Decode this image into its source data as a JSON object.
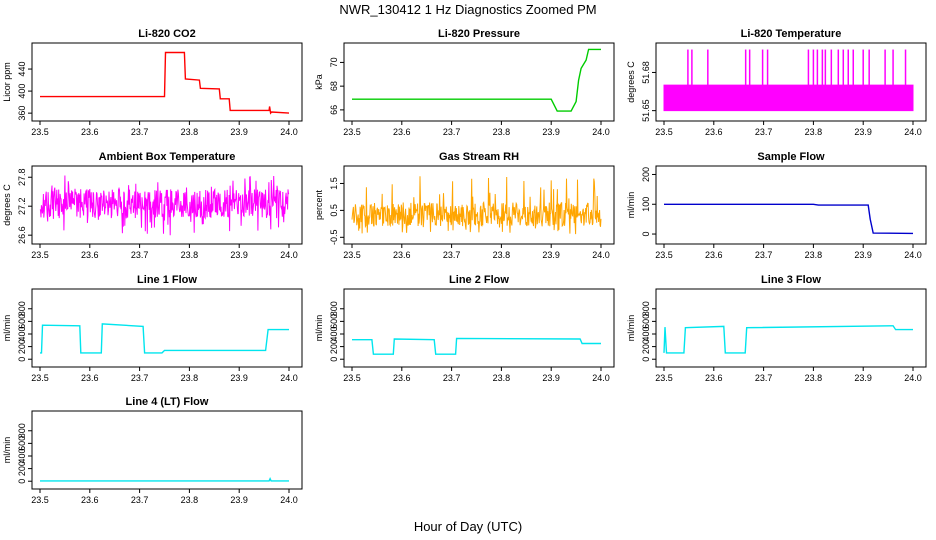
{
  "figure": {
    "title": "NWR_130412  1 Hz Diagnostics Zoomed PM",
    "xlabel": "Hour of Day (UTC)"
  },
  "chart_data": [
    {
      "type": "line",
      "title": "Li-820 CO2",
      "ylabel": "Licor ppm",
      "color": "#ff0000",
      "xlim": [
        23.5,
        24.0
      ],
      "ylim": [
        353,
        480
      ],
      "xticks": [
        "23.5",
        "23.6",
        "23.7",
        "23.8",
        "23.9",
        "24.0"
      ],
      "yticks": [
        360,
        400,
        440
      ],
      "series": [
        {
          "x": [
            23.5,
            23.75,
            23.752,
            23.79,
            23.792,
            23.82,
            23.822,
            23.86,
            23.862,
            23.88,
            23.882,
            23.96,
            23.961,
            23.963,
            23.965,
            24.0
          ],
          "y": [
            390,
            390,
            470,
            470,
            422,
            420,
            405,
            404,
            386,
            386,
            365,
            365,
            372,
            360,
            362,
            360
          ]
        }
      ]
    },
    {
      "type": "line",
      "title": "Li-820 Pressure",
      "ylabel": "kPa",
      "color": "#00cc00",
      "xlim": [
        23.5,
        24.0
      ],
      "ylim": [
        65.4,
        71.3
      ],
      "xticks": [
        "23.5",
        "23.6",
        "23.7",
        "23.8",
        "23.9",
        "24.0"
      ],
      "yticks": [
        66,
        68,
        70
      ],
      "series": [
        {
          "x": [
            23.5,
            23.9,
            23.912,
            23.94,
            23.95,
            23.955,
            23.96,
            23.97,
            23.975,
            24.0
          ],
          "y": [
            66.9,
            66.9,
            65.9,
            65.9,
            66.7,
            68.5,
            69.5,
            70.2,
            71.1,
            71.1
          ]
        }
      ]
    },
    {
      "type": "line",
      "title": "Li-820 Temperature",
      "ylabel": "degrees C",
      "color": "#ff00ff",
      "xlim": [
        23.5,
        24.0
      ],
      "ylim": [
        51.645,
        51.7
      ],
      "xticks": [
        "23.5",
        "23.6",
        "23.7",
        "23.8",
        "23.9",
        "24.0"
      ],
      "yticks": [
        51.65,
        51.68
      ],
      "series": [
        {
          "x": [
            23.5,
            24.0
          ],
          "low": 51.65,
          "high": 51.67,
          "spike": 51.698,
          "spikes_x": [
            23.548,
            23.556,
            23.588,
            23.664,
            23.672,
            23.698,
            23.708,
            23.79,
            23.8,
            23.808,
            23.818,
            23.824,
            23.836,
            23.85,
            23.86,
            23.87,
            23.88,
            23.9,
            23.912,
            23.944,
            23.96,
            23.985
          ]
        }
      ]
    },
    {
      "type": "line",
      "title": "Ambient Box Temperature",
      "ylabel": "degrees C",
      "color": "#ff00ff",
      "xlim": [
        23.5,
        24.0
      ],
      "ylim": [
        26.5,
        27.95
      ],
      "xticks": [
        "23.5",
        "23.6",
        "23.7",
        "23.8",
        "23.9",
        "24.0"
      ],
      "yticks": [
        26.6,
        27.2,
        27.8
      ],
      "series": [
        {
          "x": [
            23.5,
            24.0
          ],
          "mean": 27.25,
          "band": [
            26.95,
            27.55
          ],
          "extremes": [
            26.6,
            27.85
          ]
        }
      ]
    },
    {
      "type": "line",
      "title": "Gas Stream RH",
      "ylabel": "percent",
      "color": "#ffa500",
      "xlim": [
        23.5,
        24.0
      ],
      "ylim": [
        -0.6,
        2.0
      ],
      "xticks": [
        "23.5",
        "23.6",
        "23.7",
        "23.8",
        "23.9",
        "24.0"
      ],
      "yticks": [
        -0.5,
        0.5,
        1.5
      ],
      "series": [
        {
          "x": [
            23.5,
            24.0
          ],
          "mean": 0.35,
          "band": [
            -0.1,
            0.8
          ],
          "extremes": [
            -0.4,
            1.8
          ]
        }
      ]
    },
    {
      "type": "line",
      "title": "Sample Flow",
      "ylabel": "ml/min",
      "color": "#0000cc",
      "xlim": [
        23.5,
        24.0
      ],
      "ylim": [
        -20,
        215
      ],
      "xticks": [
        "23.5",
        "23.6",
        "23.7",
        "23.8",
        "23.9",
        "24.0"
      ],
      "yticks": [
        0,
        100,
        200
      ],
      "series": [
        {
          "x": [
            23.5,
            23.8,
            23.81,
            23.91,
            23.914,
            23.92,
            24.0
          ],
          "y": [
            100,
            100,
            97,
            97,
            50,
            3,
            2
          ]
        }
      ]
    },
    {
      "type": "line",
      "title": "Line 1 Flow",
      "ylabel": "ml/min",
      "color": "#00e5ee",
      "xlim": [
        23.5,
        24.0
      ],
      "ylim": [
        -60,
        1050
      ],
      "xticks": [
        "23.5",
        "23.6",
        "23.7",
        "23.8",
        "23.9",
        "24.0"
      ],
      "yticks": [
        0,
        200,
        400,
        600,
        800
      ],
      "series": [
        {
          "x": [
            23.5,
            23.503,
            23.505,
            23.58,
            23.582,
            23.623,
            23.625,
            23.707,
            23.71,
            23.745,
            23.75,
            23.953,
            23.958,
            24.0
          ],
          "y": [
            100,
            100,
            540,
            530,
            100,
            100,
            560,
            520,
            100,
            100,
            140,
            140,
            470,
            470
          ]
        }
      ]
    },
    {
      "type": "line",
      "title": "Line 2 Flow",
      "ylabel": "ml/min",
      "color": "#00e5ee",
      "xlim": [
        23.5,
        24.0
      ],
      "ylim": [
        -60,
        1050
      ],
      "xticks": [
        "23.5",
        "23.6",
        "23.7",
        "23.8",
        "23.9",
        "24.0"
      ],
      "yticks": [
        0,
        200,
        400,
        600,
        800
      ],
      "series": [
        {
          "x": [
            23.5,
            23.54,
            23.543,
            23.583,
            23.585,
            23.665,
            23.668,
            23.708,
            23.71,
            23.958,
            23.962,
            24.0
          ],
          "y": [
            310,
            310,
            80,
            80,
            320,
            310,
            80,
            80,
            330,
            320,
            250,
            250
          ]
        }
      ]
    },
    {
      "type": "line",
      "title": "Line 3 Flow",
      "ylabel": "ml/min",
      "color": "#00e5ee",
      "xlim": [
        23.5,
        24.0
      ],
      "ylim": [
        -60,
        1050
      ],
      "xticks": [
        "23.5",
        "23.6",
        "23.7",
        "23.8",
        "23.9",
        "24.0"
      ],
      "yticks": [
        0,
        200,
        400,
        600,
        800
      ],
      "series": [
        {
          "x": [
            23.5,
            23.502,
            23.505,
            23.54,
            23.543,
            23.62,
            23.623,
            23.663,
            23.666,
            23.96,
            23.965,
            24.0
          ],
          "y": [
            100,
            510,
            100,
            100,
            500,
            520,
            100,
            100,
            500,
            530,
            470,
            470
          ]
        }
      ]
    },
    {
      "type": "line",
      "title": "Line 4 (LT) Flow",
      "ylabel": "ml/min",
      "color": "#00e5ee",
      "xlim": [
        23.5,
        24.0
      ],
      "ylim": [
        -60,
        1050
      ],
      "xticks": [
        "23.5",
        "23.6",
        "23.7",
        "23.8",
        "23.9",
        "24.0"
      ],
      "yticks": [
        0,
        200,
        400,
        600,
        800
      ],
      "series": [
        {
          "x": [
            23.5,
            23.95,
            23.96,
            23.962,
            23.964,
            24.0
          ],
          "y": [
            5,
            5,
            5,
            40,
            5,
            5
          ]
        }
      ]
    }
  ]
}
